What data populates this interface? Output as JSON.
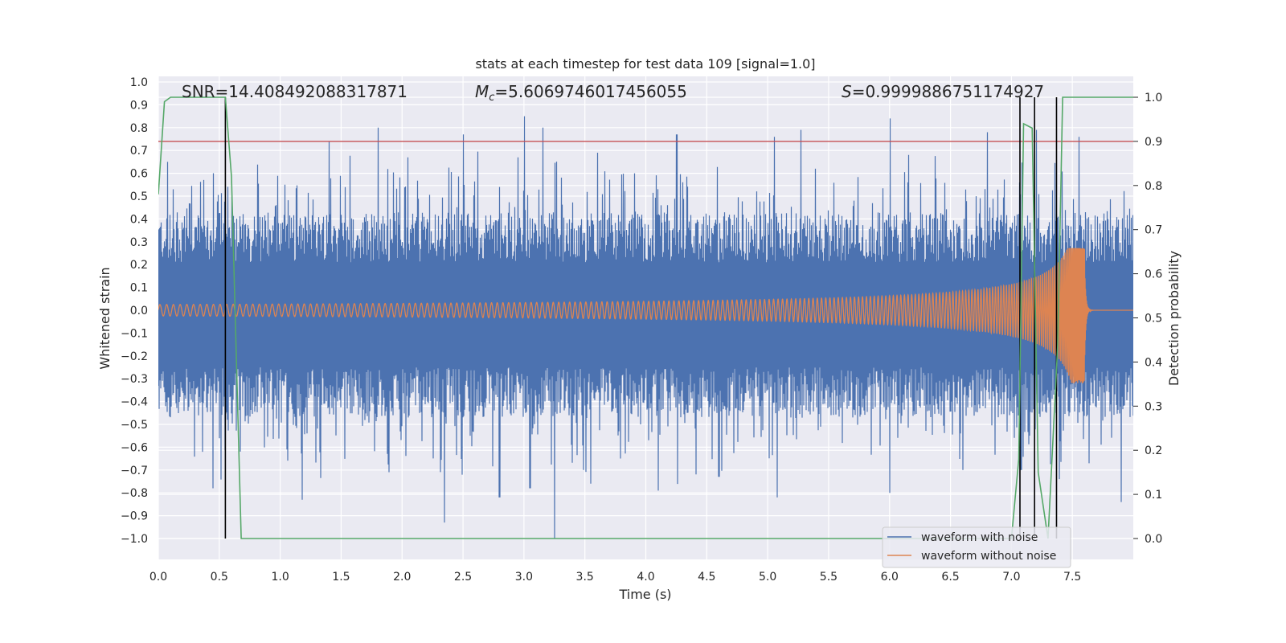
{
  "chart_data": {
    "type": "line",
    "title": "stats at each timestep for test data 109 [signal=1.0]",
    "xlabel": "Time (s)",
    "ylabel": "Whitened strain",
    "y2label": "Detection probability",
    "xlim": [
      0.0,
      8.0
    ],
    "ylim": [
      -1.1,
      1.05
    ],
    "y2lim": [
      -0.05,
      1.05
    ],
    "x_ticks": [
      "0.0",
      "0.5",
      "1.0",
      "1.5",
      "2.0",
      "2.5",
      "3.0",
      "3.5",
      "4.0",
      "4.5",
      "5.0",
      "5.5",
      "6.0",
      "6.5",
      "7.0",
      "7.5"
    ],
    "y_ticks": [
      "1.0",
      "0.9",
      "0.8",
      "0.7",
      "0.6",
      "0.5",
      "0.4",
      "0.3",
      "0.2",
      "0.1",
      "0.0",
      "−0.1",
      "−0.2",
      "−0.3",
      "−0.4",
      "−0.5",
      "−0.6",
      "−0.7",
      "−0.8",
      "−0.9",
      "−1.0"
    ],
    "y2_ticks": [
      "1.0",
      "0.9",
      "0.8",
      "0.7",
      "0.6",
      "0.5",
      "0.4",
      "0.3",
      "0.2",
      "0.1",
      "0.0"
    ],
    "grid": true,
    "legend_position": "lower-right",
    "annotations": {
      "snr": "SNR=14.408492088317871",
      "mc_symbol": "M",
      "mc_sub": "c",
      "mc_value": "=5.6069746017456055",
      "s_symbol": "S",
      "s_value": "=0.9999886751174927"
    },
    "series": [
      {
        "name": "waveform with noise",
        "color": "#4c72b0",
        "envelope": {
          "high_mean": 0.32,
          "low_mean": -0.36,
          "max": 0.85,
          "min": -1.0
        },
        "peaks_high": [
          [
            0.07,
            0.65
          ],
          [
            1.4,
            0.74
          ],
          [
            1.8,
            0.8
          ],
          [
            2.5,
            0.77
          ],
          [
            2.95,
            0.67
          ],
          [
            3.0,
            0.85
          ],
          [
            3.15,
            0.8
          ],
          [
            3.6,
            0.69
          ],
          [
            4.25,
            0.77
          ],
          [
            5.05,
            0.76
          ],
          [
            5.27,
            0.79
          ],
          [
            6.0,
            0.84
          ],
          [
            6.8,
            0.78
          ],
          [
            7.2,
            0.79
          ],
          [
            7.55,
            0.76
          ]
        ],
        "peaks_low": [
          [
            0.45,
            -0.78
          ],
          [
            1.18,
            -0.83
          ],
          [
            2.35,
            -0.93
          ],
          [
            2.8,
            -0.82
          ],
          [
            3.05,
            -0.78
          ],
          [
            3.25,
            -1.0
          ],
          [
            3.55,
            -0.76
          ],
          [
            4.1,
            -0.79
          ],
          [
            4.6,
            -0.73
          ],
          [
            5.08,
            -0.82
          ],
          [
            6.0,
            -0.8
          ],
          [
            6.6,
            -0.7
          ],
          [
            7.08,
            -0.7
          ],
          [
            7.9,
            -0.84
          ]
        ]
      },
      {
        "name": "waveform without noise",
        "color": "#dd8452",
        "chirp": {
          "amp_start": 0.025,
          "amp_peak_max": 0.27,
          "amp_peak_min": -0.38,
          "merger_time": 7.6,
          "end_time": 8.0
        }
      },
      {
        "name": "detection probability",
        "axis": "right",
        "color": "#55a868",
        "points": [
          [
            0.0,
            0.78
          ],
          [
            0.05,
            0.99
          ],
          [
            0.1,
            1.0
          ],
          [
            0.55,
            1.0
          ],
          [
            0.6,
            0.82
          ],
          [
            0.68,
            0.0
          ],
          [
            1.0,
            0.0
          ],
          [
            7.0,
            0.0
          ],
          [
            7.06,
            0.18
          ],
          [
            7.1,
            0.94
          ],
          [
            7.17,
            0.93
          ],
          [
            7.22,
            0.15
          ],
          [
            7.3,
            0.0
          ],
          [
            7.38,
            0.44
          ],
          [
            7.42,
            1.0
          ],
          [
            8.0,
            1.0
          ]
        ]
      }
    ],
    "threshold": {
      "value": 0.9,
      "axis": "right",
      "color": "#c44e52"
    },
    "event_markers": {
      "times": [
        0.55,
        7.07,
        7.19,
        7.37
      ],
      "color": "#000000"
    }
  }
}
